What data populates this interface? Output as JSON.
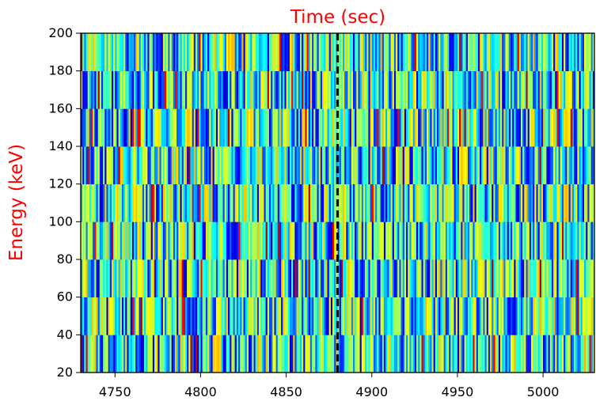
{
  "chart_data": {
    "type": "heatmap",
    "title": "Time (sec)",
    "xlabel": "",
    "ylabel": "Energy (keV)",
    "xlim": [
      4730,
      5030
    ],
    "ylim": [
      20,
      200
    ],
    "x_ticks": [
      "4750",
      "4800",
      "4850",
      "4900",
      "4950",
      "5000"
    ],
    "y_ticks": [
      "20",
      "40",
      "60",
      "80",
      "100",
      "120",
      "140",
      "160",
      "180",
      "200"
    ],
    "energy_bins": [
      20,
      40,
      60,
      80,
      100,
      120,
      140,
      160,
      180,
      200
    ],
    "time_bin_width_sec": 1,
    "colormap": "jet",
    "dominant_colors": [
      "#0000ff",
      "#0078ff",
      "#00c8ff",
      "#80ff80",
      "#ffff00",
      "#ff6000"
    ],
    "marker_line": {
      "x": 4880,
      "style": "dashed",
      "color": "#000000"
    }
  }
}
